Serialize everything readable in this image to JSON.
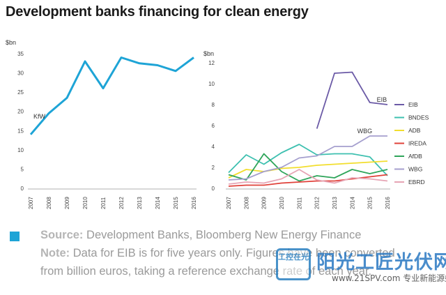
{
  "title": "Development banks financing for clean energy",
  "chart_data": [
    {
      "type": "line",
      "unit_label": "$bn",
      "x": [
        "2007",
        "2008",
        "2009",
        "2010",
        "2011",
        "2012",
        "2013",
        "2014",
        "2015",
        "2016"
      ],
      "ylim": [
        0,
        35
      ],
      "yticks": [
        0,
        5,
        10,
        15,
        20,
        25,
        30,
        35
      ],
      "series": [
        {
          "name": "KfW",
          "color": "#1ea4d6",
          "values": [
            14,
            19.5,
            23.5,
            33,
            26,
            34,
            32.5,
            32,
            30.5,
            34
          ]
        }
      ],
      "annotations": [
        "KfW"
      ]
    },
    {
      "type": "line",
      "unit_label": "$bn",
      "x": [
        "2007",
        "2008",
        "2009",
        "2010",
        "2011",
        "2012",
        "2013",
        "2014",
        "2015",
        "2016"
      ],
      "ylim": [
        0,
        12
      ],
      "yticks": [
        0,
        2,
        4,
        6,
        8,
        10,
        12
      ],
      "legend_position": "right",
      "series": [
        {
          "name": "EIB",
          "color": "#6b5aa6",
          "values": [
            null,
            null,
            null,
            null,
            null,
            5.7,
            11,
            11.1,
            8.2,
            8
          ]
        },
        {
          "name": "BNDES",
          "color": "#3ec0b0",
          "values": [
            1.5,
            3.2,
            2.3,
            3.4,
            4.2,
            3.2,
            3.3,
            3.3,
            3,
            1.2
          ]
        },
        {
          "name": "ADB",
          "color": "#f2de2e",
          "values": [
            1,
            1.8,
            1.6,
            1.9,
            2,
            2.2,
            2.3,
            2.4,
            2.5,
            2.6
          ]
        },
        {
          "name": "IREDA",
          "color": "#e0413a",
          "values": [
            0.2,
            0.3,
            0.3,
            0.5,
            0.6,
            0.7,
            0.7,
            0.9,
            1.1,
            1.3
          ]
        },
        {
          "name": "AfDB",
          "color": "#2fa55a",
          "values": [
            1.3,
            0.8,
            3.3,
            1.6,
            0.7,
            1.2,
            1,
            1.8,
            1.4,
            1.8
          ]
        },
        {
          "name": "WBG",
          "color": "#a59fce",
          "values": [
            0.8,
            0.9,
            1.6,
            2,
            2.9,
            3.1,
            4,
            4,
            5,
            5
          ]
        },
        {
          "name": "EBRD",
          "color": "#e6a4b4",
          "values": [
            0.4,
            0.6,
            0.5,
            0.9,
            1.8,
            0.8,
            0.5,
            1,
            0.9,
            0.7
          ]
        }
      ],
      "annotations": [
        "EIB",
        "WBG"
      ]
    }
  ],
  "notes": {
    "source_label": "Source:",
    "source_text": " Development Banks, Bloomberg New Energy Finance",
    "note_label": "Note:",
    "note_text": " Data for EIB is for five years only. Figures have been converted",
    "note_text2": "from billion euros, taking a reference exchange rate of each year."
  },
  "watermark": {
    "logo_text": "工控在光",
    "title": "阳光工匠光伏网",
    "subtitle": "www.21SPV.com 专业新能源媒体"
  }
}
